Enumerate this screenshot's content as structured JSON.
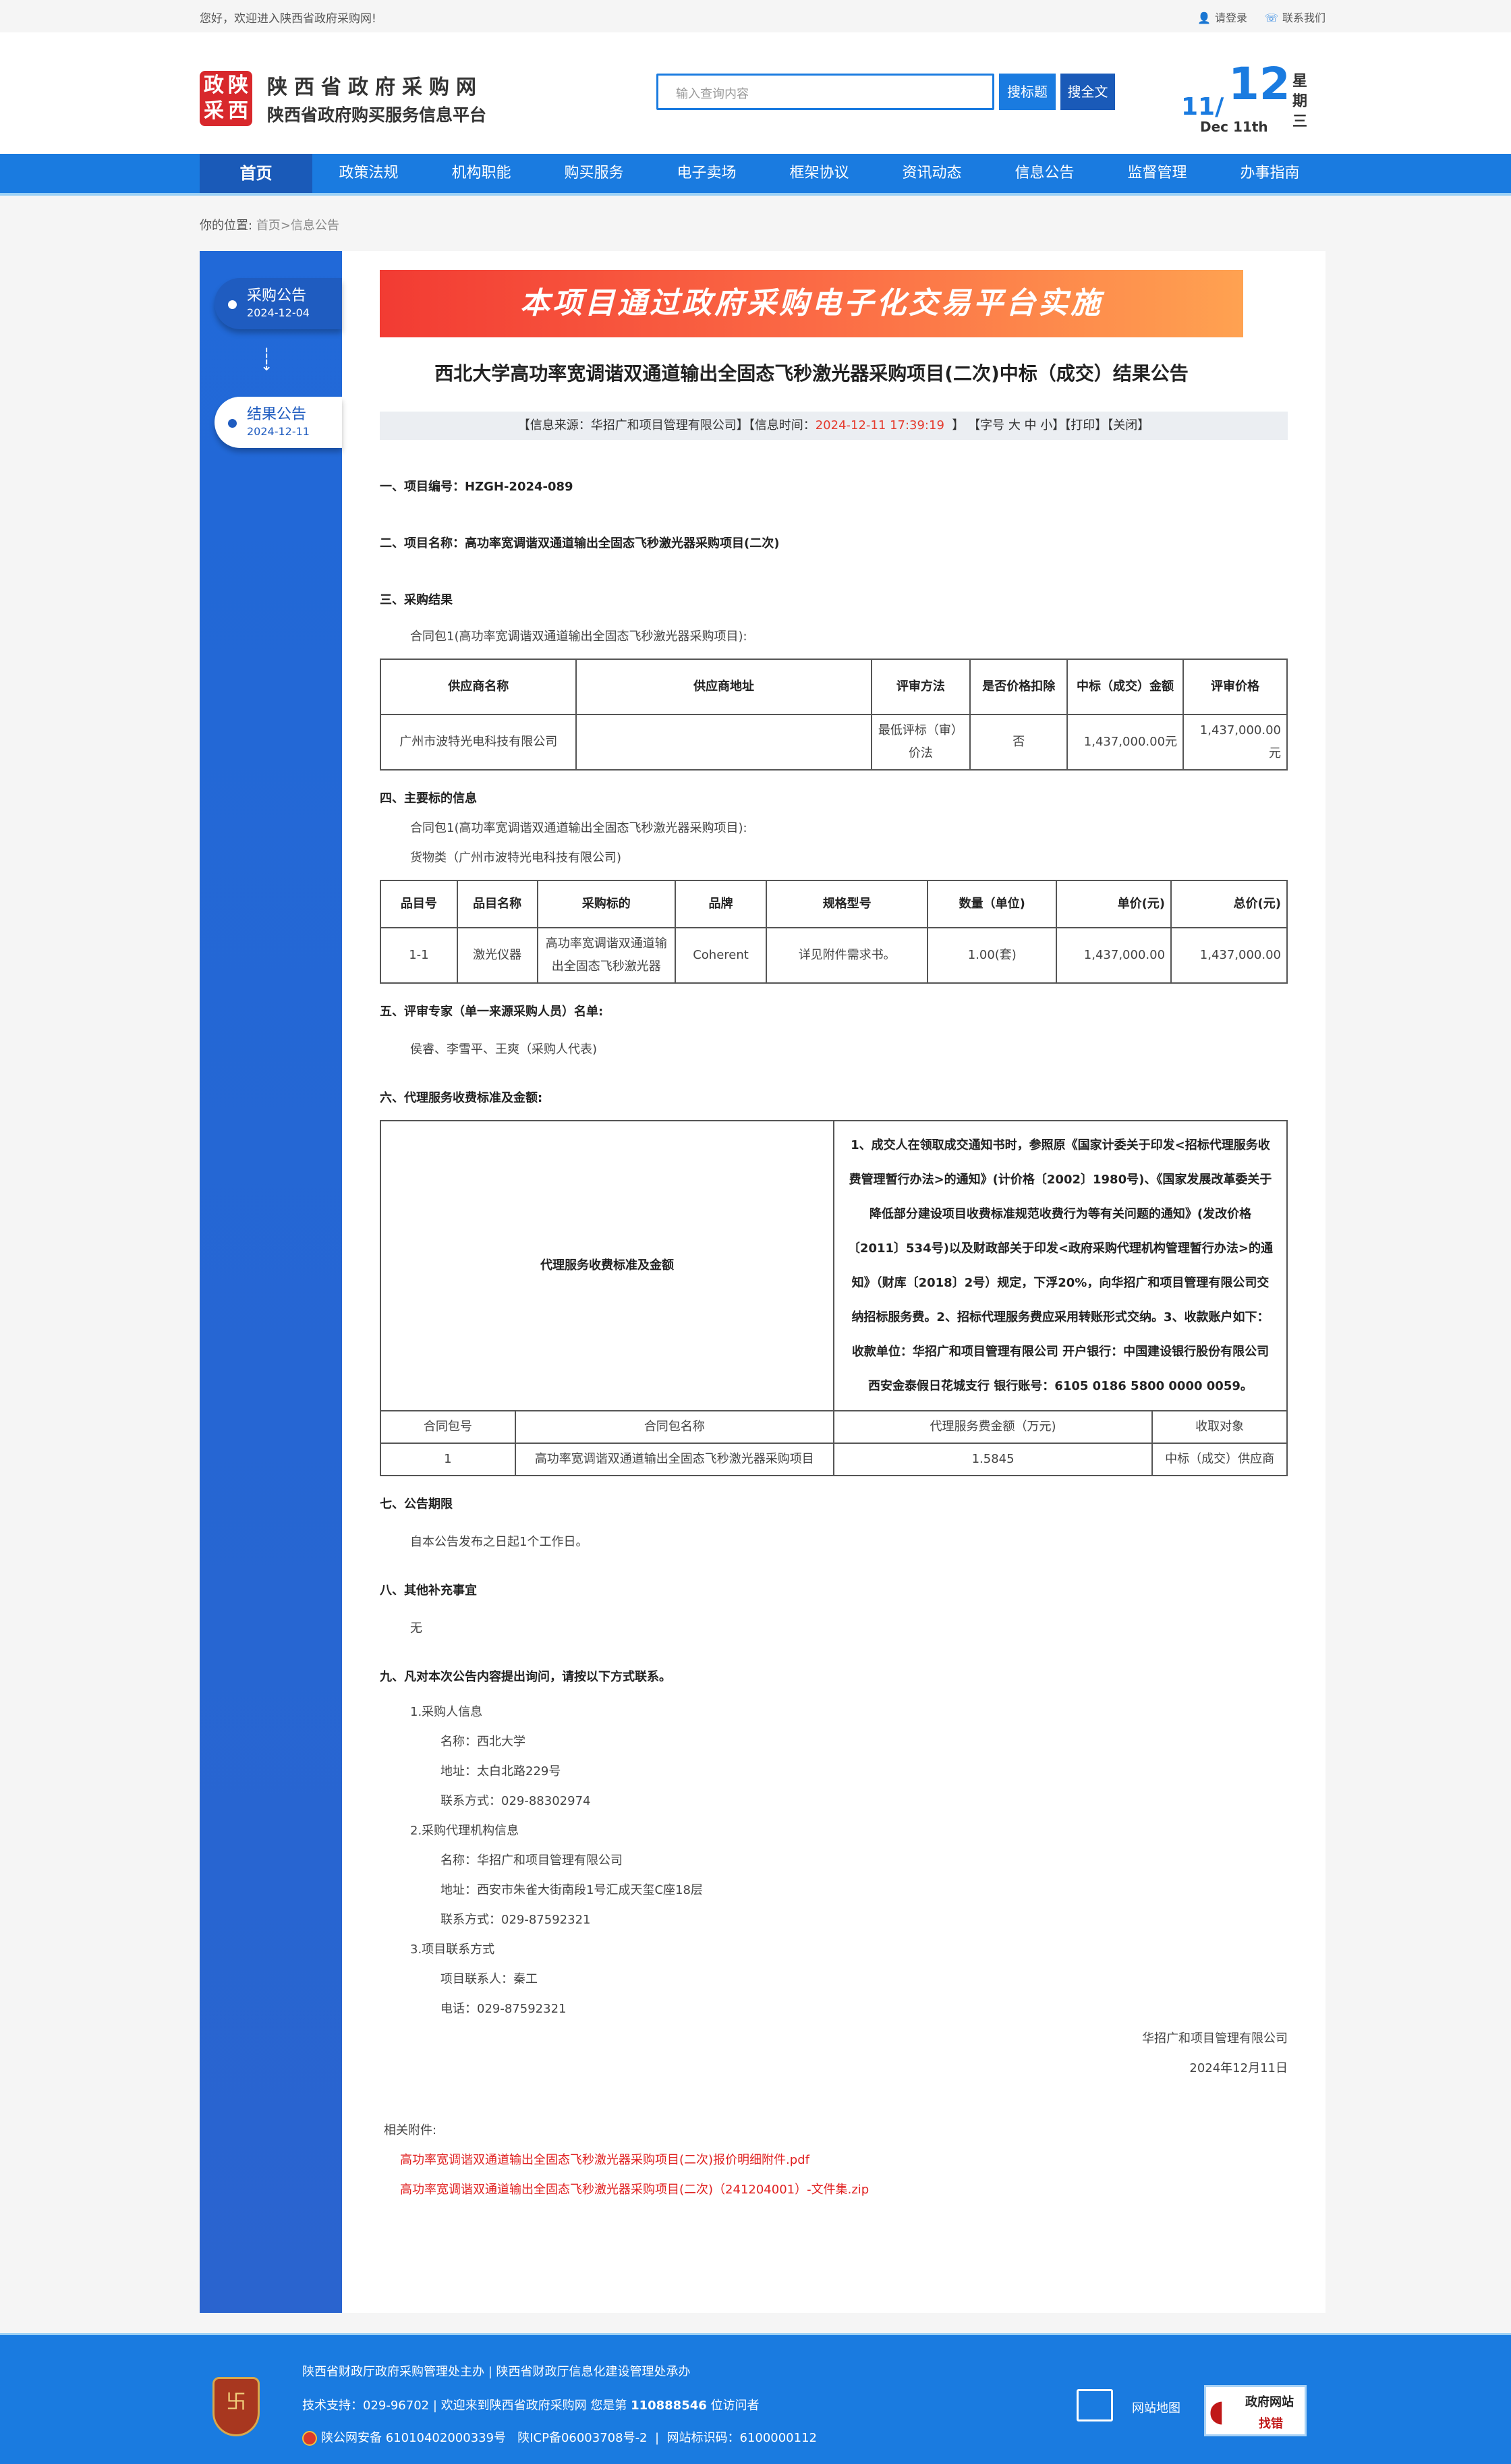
{
  "topbar": {
    "welcome": "您好，欢迎进入陕西省政府采购网!",
    "login": "请登录",
    "contact": "联系我们",
    "login_icon": "user-icon",
    "contact_icon": "phone-icon"
  },
  "header": {
    "logo_chars": [
      "政",
      "陕",
      "采",
      "西"
    ],
    "site_name": "陕西省政府采购网",
    "site_sub": "陕西省政府购买服务信息平台",
    "search_placeholder": "输入查询内容",
    "search_title_btn": "搜标题",
    "search_full_btn": "搜全文",
    "date_month": "11/",
    "date_day": "12",
    "date_en": "Dec 11th",
    "weekday": "星期三"
  },
  "nav": [
    "首页",
    "政策法规",
    "机构职能",
    "购买服务",
    "电子卖场",
    "框架协议",
    "资讯动态",
    "信息公告",
    "监督管理",
    "办事指南"
  ],
  "breadcrumb": {
    "label": "你的位置:",
    "home": "首页",
    "sep": ">",
    "current": "信息公告"
  },
  "sidebar": [
    {
      "label": "采购公告",
      "date": "2024-12-04"
    },
    {
      "label": "结果公告",
      "date": "2024-12-11"
    }
  ],
  "banner": "本项目通过政府采购电子化交易平台实施",
  "title": "西北大学高功率宽调谐双通道输出全固态飞秒激光器采购项目(二次)中标（成交）结果公告",
  "info": {
    "source": "【信息来源：华招广和项目管理有限公司】",
    "time_label": "【信息时间：",
    "time": "2024-12-11 17:39:19",
    "time_end": "】",
    "font": "【字号 大 中 小】",
    "print": "【打印】",
    "close": "【关闭】"
  },
  "s1": "一、项目编号：HZGH-2024-089",
  "s2": "二、项目名称：高功率宽调谐双通道输出全固态飞秒激光器采购项目(二次)",
  "s3": {
    "heading": "三、采购结果",
    "pkg": "合同包1(高功率宽调谐双通道输出全固态飞秒激光器采购项目):",
    "headers": [
      "供应商名称",
      "供应商地址",
      "评审方法",
      "是否价格扣除",
      "中标（成交）金额",
      "评审价格"
    ],
    "row": [
      "广州市波特光电科技有限公司",
      "",
      "最低评标（审）价法",
      "否",
      "1,437,000.00元",
      "1,437,000.00元"
    ]
  },
  "s4": {
    "heading": "四、主要标的信息",
    "pkg": "合同包1(高功率宽调谐双通道输出全固态飞秒激光器采购项目):",
    "category": "货物类（广州市波特光电科技有限公司)",
    "headers": [
      "品目号",
      "品目名称",
      "采购标的",
      "品牌",
      "规格型号",
      "数量（单位)",
      "单价(元)",
      "总价(元)"
    ],
    "row": [
      "1-1",
      "激光仪器",
      "高功率宽调谐双通道输出全固态飞秒激光器",
      "Coherent",
      "详见附件需求书。",
      "1.00(套)",
      "1,437,000.00",
      "1,437,000.00"
    ]
  },
  "s5": {
    "heading": "五、评审专家（单一来源采购人员）名单:",
    "names": "侯睿、李雪平、王爽（采购人代表)"
  },
  "s6": {
    "heading": "六、代理服务收费标准及金额:",
    "label": "代理服务收费标准及金额",
    "text": "1、成交人在领取成交通知书时，参照原《国家计委关于印发<招标代理服务收费管理暂行办法>的通知》(计价格〔2002〕1980号)、《国家发展改革委关于降低部分建设项目收费标准规范收费行为等有关问题的通知》(发改价格〔2011〕534号)以及财政部关于印发<政府采购代理机构管理暂行办法>的通知》（财库〔2018〕2号）规定，下浮20%，向华招广和项目管理有限公司交纳招标服务费。2、招标代理服务费应采用转账形式交纳。3、收款账户如下：收款单位：华招广和项目管理有限公司 开户银行：中国建设银行股份有限公司西安金泰假日花城支行 银行账号：6105 0186 5800 0000 0059。",
    "headers": [
      "合同包号",
      "合同包名称",
      "代理服务费金额（万元)",
      "收取对象"
    ],
    "row": [
      "1",
      "高功率宽调谐双通道输出全固态飞秒激光器采购项目",
      "1.5845",
      "中标（成交）供应商"
    ]
  },
  "s7": {
    "heading": "七、公告期限",
    "text": "自本公告发布之日起1个工作日。"
  },
  "s8": {
    "heading": "八、其他补充事宜",
    "text": "无"
  },
  "s9": {
    "heading": "九、凡对本次公告内容提出询问，请按以下方式联系。",
    "buyer": {
      "title": "1.采购人信息",
      "name": "名称：西北大学",
      "address": "地址：太白北路229号",
      "phone": "联系方式：029-88302974"
    },
    "agency": {
      "title": "2.采购代理机构信息",
      "name": "名称：华招广和项目管理有限公司",
      "address": "地址：西安市朱雀大街南段1号汇成天玺C座18层",
      "phone": "联系方式：029-87592321"
    },
    "project": {
      "title": "3.项目联系方式",
      "contact": "项目联系人：秦工",
      "phone": "电话：029-87592321"
    }
  },
  "signature": {
    "company": "华招广和项目管理有限公司",
    "date": "2024年12月11日"
  },
  "attachments": {
    "label": "相关附件:",
    "files": [
      "高功率宽调谐双通道输出全固态飞秒激光器采购项目(二次)报价明细附件.pdf",
      "高功率宽调谐双通道输出全固态飞秒激光器采购项目(二次)（241204001）-文件集.zip"
    ]
  },
  "footer": {
    "line1": "陕西省财政厅政府采购管理处主办 | 陕西省财政厅信息化建设管理处承办",
    "line2_pre": "技术支持：029-96702 | 欢迎来到陕西省政府采购网 您是第 ",
    "visitors": "110888546",
    "line2_post": " 位访问者",
    "line3": "陕公网安备 61010402000339号   陕ICP备06003708号-2  |  网站标识码：6100000112",
    "emblem_text": "党政机关",
    "sitemap": "网站地图",
    "report_a": "政府网站",
    "report_b": "找错"
  },
  "colors": {
    "primary": "#1a7be0",
    "nav_active": "#1a5ab8",
    "accent_red": "#e53b2e"
  }
}
